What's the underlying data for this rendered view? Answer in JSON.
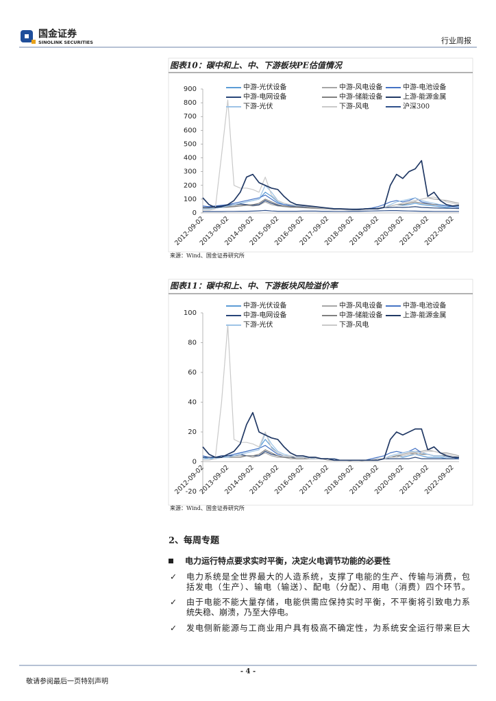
{
  "header": {
    "logo_cn": "国金证券",
    "logo_en": "SINOLINK SECURITIES",
    "report_type": "行业周报"
  },
  "chart_data": [
    {
      "type": "line",
      "title": "图表10：碳中和上、中、下游板块PE估值情况",
      "source": "来源：Wind、国金证券研究所",
      "categories": [
        "2012-09-02",
        null,
        null,
        null,
        "2013-09-02",
        null,
        null,
        null,
        "2014-09-02",
        null,
        null,
        null,
        "2015-09-02",
        null,
        null,
        null,
        "2016-09-02",
        null,
        null,
        null,
        "2017-09-02",
        null,
        null,
        null,
        "2018-09-02",
        null,
        null,
        null,
        "2019-09-02",
        null,
        null,
        null,
        "2020-09-02",
        null,
        null,
        null,
        "2021-09-02",
        null,
        null,
        null,
        "2022-09-02",
        null
      ],
      "ylim": [
        0,
        900
      ],
      "yticks": [
        0,
        100,
        200,
        300,
        400,
        500,
        600,
        700,
        800,
        900
      ],
      "series": [
        {
          "name": "中游-光伏设备",
          "color": "#5b9bd5",
          "values": [
            40,
            35,
            40,
            45,
            50,
            60,
            70,
            80,
            90,
            100,
            150,
            120,
            80,
            60,
            55,
            50,
            50,
            45,
            40,
            38,
            35,
            32,
            30,
            28,
            25,
            25,
            28,
            30,
            35,
            40,
            50,
            60,
            55,
            60,
            70,
            60,
            55,
            50,
            45,
            40,
            45,
            40
          ]
        },
        {
          "name": "中游-风电设备",
          "color": "#a5a5a5",
          "values": [
            30,
            30,
            35,
            40,
            45,
            50,
            60,
            55,
            50,
            55,
            80,
            60,
            50,
            45,
            40,
            40,
            38,
            35,
            32,
            30,
            28,
            25,
            25,
            22,
            22,
            22,
            25,
            30,
            35,
            40,
            50,
            60,
            70,
            80,
            90,
            100,
            110,
            100,
            95,
            90,
            80,
            70
          ]
        },
        {
          "name": "中游-电池设备",
          "color": "#4472c4",
          "values": [
            50,
            45,
            50,
            55,
            60,
            70,
            80,
            90,
            100,
            110,
            130,
            100,
            70,
            60,
            55,
            50,
            45,
            40,
            38,
            35,
            32,
            30,
            28,
            25,
            25,
            28,
            30,
            35,
            45,
            60,
            80,
            90,
            80,
            90,
            110,
            80,
            70,
            60,
            55,
            50,
            45,
            40
          ]
        },
        {
          "name": "中游-电网设备",
          "color": "#264478",
          "values": [
            40,
            40,
            45,
            50,
            55,
            60,
            65,
            60,
            55,
            60,
            90,
            70,
            55,
            50,
            48,
            45,
            42,
            40,
            38,
            35,
            32,
            30,
            30,
            28,
            28,
            28,
            30,
            32,
            35,
            38,
            40,
            42,
            40,
            42,
            45,
            40,
            38,
            36,
            35,
            34,
            33,
            32
          ]
        },
        {
          "name": "中游-储能设备",
          "color": "#7f7f7f",
          "values": [
            35,
            35,
            38,
            40,
            42,
            45,
            50,
            55,
            60,
            70,
            100,
            80,
            60,
            50,
            45,
            42,
            40,
            38,
            36,
            34,
            32,
            30,
            28,
            26,
            25,
            25,
            28,
            30,
            35,
            40,
            50,
            60,
            60,
            70,
            80,
            70,
            65,
            60,
            60,
            55,
            50,
            45
          ]
        },
        {
          "name": "上游-能源金属",
          "color": "#203864",
          "values": [
            110,
            60,
            40,
            45,
            60,
            90,
            150,
            260,
            280,
            220,
            200,
            180,
            170,
            120,
            80,
            60,
            55,
            50,
            45,
            40,
            35,
            30,
            30,
            28,
            25,
            25,
            30,
            30,
            30,
            40,
            200,
            280,
            250,
            300,
            320,
            380,
            120,
            150,
            90,
            60,
            50,
            55
          ]
        },
        {
          "name": "下游-光伏",
          "color": "#9dc3e6",
          "values": [
            30,
            30,
            35,
            40,
            50,
            60,
            70,
            80,
            90,
            100,
            200,
            150,
            90,
            70,
            60,
            55,
            50,
            45,
            40,
            38,
            35,
            32,
            30,
            28,
            26,
            25,
            28,
            30,
            35,
            40,
            60,
            80,
            90,
            100,
            110,
            90,
            80,
            70,
            60,
            55,
            50,
            45
          ]
        },
        {
          "name": "下游-风电",
          "color": "#c9c9c9",
          "values": [
            20,
            20,
            30,
            420,
            820,
            200,
            180,
            180,
            170,
            150,
            260,
            130,
            90,
            70,
            60,
            50,
            50,
            45,
            40,
            35,
            30,
            28,
            25,
            25,
            22,
            22,
            25,
            30,
            35,
            40,
            50,
            60,
            70,
            80,
            90,
            100,
            110,
            115,
            100,
            80,
            70,
            60
          ]
        },
        {
          "name": "沪深300",
          "color": "#2e4f8a",
          "values": [
            10,
            10,
            10,
            10,
            11,
            11,
            12,
            12,
            13,
            15,
            18,
            14,
            12,
            12,
            12,
            12,
            13,
            13,
            13,
            12,
            12,
            11,
            11,
            11,
            12,
            12,
            13,
            14,
            15,
            16,
            17,
            17,
            15,
            14,
            13,
            12,
            12,
            11,
            11,
            11,
            11,
            11
          ]
        }
      ]
    },
    {
      "type": "line",
      "title": "图表11：碳中和上、中、下游板块风险溢价率",
      "source": "来源：Wind、国金证券研究所",
      "categories": [
        "2012-09-02",
        null,
        null,
        null,
        "2013-09-02",
        null,
        null,
        null,
        "2014-09-02",
        null,
        null,
        null,
        "2015-09-02",
        null,
        null,
        null,
        "2016-09-02",
        null,
        null,
        null,
        "2017-09-02",
        null,
        null,
        null,
        "2018-09-02",
        null,
        null,
        null,
        "2019-09-02",
        null,
        null,
        null,
        "2020-09-02",
        null,
        null,
        null,
        "2021-09-02",
        null,
        null,
        null,
        "2022-09-02",
        null
      ],
      "ylim": [
        -20,
        100
      ],
      "yticks": [
        -20,
        0,
        20,
        40,
        60,
        80,
        100
      ],
      "series": [
        {
          "name": "中游-光伏设备",
          "color": "#5b9bd5",
          "values": [
            3,
            2,
            3,
            3,
            4,
            5,
            6,
            7,
            8,
            9,
            15,
            10,
            6,
            4,
            4,
            3,
            3,
            3,
            2,
            2,
            2,
            2,
            1,
            1,
            1,
            1,
            1,
            1,
            2,
            2,
            3,
            4,
            3,
            4,
            5,
            4,
            3,
            3,
            3,
            2,
            2,
            2
          ]
        },
        {
          "name": "中游-风电设备",
          "color": "#a5a5a5",
          "values": [
            2,
            2,
            2,
            3,
            3,
            4,
            4,
            4,
            3,
            4,
            6,
            4,
            3,
            3,
            2,
            2,
            2,
            2,
            2,
            2,
            1,
            1,
            1,
            1,
            1,
            1,
            1,
            1,
            2,
            2,
            3,
            4,
            5,
            6,
            7,
            7,
            8,
            7,
            6,
            6,
            5,
            4
          ]
        },
        {
          "name": "中游-电池设备",
          "color": "#4472c4",
          "values": [
            4,
            3,
            3,
            4,
            4,
            5,
            6,
            7,
            8,
            9,
            11,
            8,
            5,
            4,
            4,
            3,
            3,
            2,
            2,
            2,
            2,
            1,
            1,
            1,
            1,
            1,
            1,
            2,
            3,
            4,
            6,
            7,
            6,
            7,
            9,
            6,
            5,
            4,
            4,
            3,
            3,
            2
          ]
        },
        {
          "name": "中游-电网设备",
          "color": "#264478",
          "values": [
            3,
            3,
            3,
            4,
            4,
            4,
            5,
            4,
            4,
            4,
            7,
            5,
            4,
            3,
            3,
            3,
            3,
            2,
            2,
            2,
            2,
            2,
            1,
            1,
            1,
            1,
            1,
            1,
            2,
            2,
            2,
            2,
            2,
            2,
            3,
            2,
            2,
            2,
            2,
            2,
            2,
            2
          ]
        },
        {
          "name": "中游-储能设备",
          "color": "#7f7f7f",
          "values": [
            2,
            2,
            2,
            3,
            3,
            3,
            3,
            4,
            4,
            5,
            8,
            6,
            4,
            3,
            3,
            2,
            2,
            2,
            2,
            2,
            2,
            1,
            1,
            1,
            1,
            1,
            1,
            1,
            2,
            2,
            3,
            4,
            4,
            5,
            6,
            5,
            5,
            4,
            4,
            4,
            3,
            3
          ]
        },
        {
          "name": "上游-能源金属",
          "color": "#203864",
          "values": [
            10,
            5,
            3,
            3,
            5,
            7,
            12,
            25,
            33,
            20,
            18,
            16,
            15,
            10,
            6,
            4,
            4,
            3,
            3,
            2,
            2,
            1,
            1,
            1,
            1,
            1,
            1,
            1,
            1,
            2,
            15,
            20,
            18,
            20,
            22,
            22,
            8,
            10,
            6,
            4,
            3,
            3
          ]
        },
        {
          "name": "下游-光伏",
          "color": "#9dc3e6",
          "values": [
            2,
            2,
            2,
            3,
            3,
            4,
            5,
            6,
            7,
            8,
            19,
            12,
            7,
            5,
            4,
            3,
            3,
            3,
            2,
            2,
            2,
            1,
            1,
            1,
            1,
            1,
            1,
            1,
            2,
            2,
            4,
            5,
            6,
            7,
            7,
            6,
            5,
            4,
            4,
            3,
            3,
            3
          ]
        },
        {
          "name": "下游-风电",
          "color": "#c9c9c9",
          "values": [
            1,
            1,
            2,
            40,
            92,
            15,
            13,
            13,
            12,
            10,
            20,
            9,
            6,
            4,
            4,
            3,
            3,
            2,
            2,
            2,
            2,
            1,
            1,
            1,
            0,
            0,
            1,
            1,
            2,
            2,
            3,
            3,
            4,
            5,
            5,
            6,
            7,
            7,
            6,
            5,
            4,
            3
          ]
        }
      ]
    }
  ],
  "section": {
    "heading": "2、每周专题",
    "key_point": "电力运行特点要求实时平衡，决定火电调节功能的必要性",
    "bullets": [
      {
        "lines": [
          "电力系统是全世界最大的人造系统，支撑了电能的生产、传输与消费，包",
          "括发电（生产）、输电（输送）、配电（分配）、用电（消费）四个环节。"
        ]
      },
      {
        "lines": [
          "由于电能不能大量存储，电能供需应保持实时平衡，不平衡将引致电力系",
          "统失稳、崩溃，乃至大停电。"
        ]
      },
      {
        "lines": [
          "发电侧新能源与工商业用户具有极高不确定性，为系统安全运行带来巨大"
        ]
      }
    ]
  },
  "footer": {
    "page": "- 4 -",
    "disclaimer": "敬请参阅最后一页特别声明"
  }
}
